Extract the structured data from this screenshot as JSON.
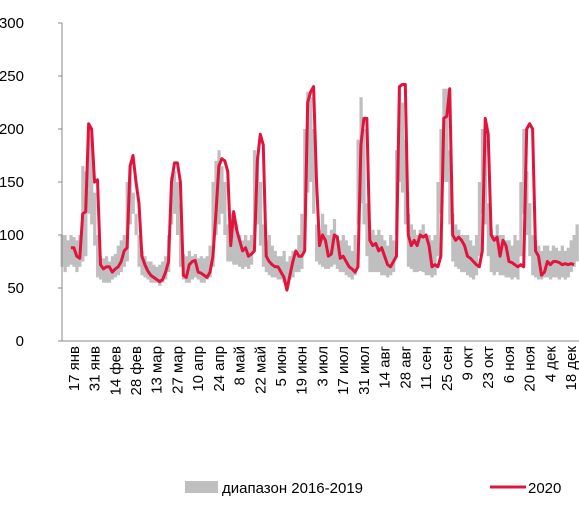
{
  "chart_data": {
    "type": "range-line",
    "categories": [
      null,
      null,
      null,
      null,
      "17 янв",
      null,
      null,
      null,
      null,
      null,
      null,
      "31 янв",
      null,
      null,
      null,
      null,
      null,
      null,
      "14 фев",
      null,
      null,
      null,
      null,
      null,
      null,
      "28 фев",
      null,
      null,
      null,
      null,
      null,
      null,
      "13 мар",
      null,
      null,
      null,
      null,
      null,
      null,
      "27 мар",
      null,
      null,
      null,
      null,
      null,
      null,
      "10 апр",
      null,
      null,
      null,
      null,
      null,
      null,
      "24 апр",
      null,
      null,
      null,
      null,
      null,
      null,
      "8 май",
      null,
      null,
      null,
      null,
      null,
      null,
      "22 май",
      null,
      null,
      null,
      null,
      null,
      null,
      "5 июн",
      null,
      null,
      null,
      null,
      null,
      null,
      "19 июн",
      null,
      null,
      null,
      null,
      null,
      null,
      "3 июл",
      null,
      null,
      null,
      null,
      null,
      null,
      "17 июл",
      null,
      null,
      null,
      null,
      null,
      null,
      "31 июл",
      null,
      null,
      null,
      null,
      null,
      null,
      "14 авг",
      null,
      null,
      null,
      null,
      null,
      null,
      "28 авг",
      null,
      null,
      null,
      null,
      null,
      null,
      "11 сен",
      null,
      null,
      null,
      null,
      null,
      null,
      "25 сен",
      null,
      null,
      null,
      null,
      null,
      null,
      "9 окт",
      null,
      null,
      null,
      null,
      null,
      null,
      "23 окт",
      null,
      null,
      null,
      null,
      null,
      null,
      "6 ноя",
      null,
      null,
      null,
      null,
      null,
      null,
      "20 ноя",
      null,
      null,
      null,
      null,
      null,
      null,
      "4 дек",
      null,
      null,
      null,
      null,
      null,
      null,
      "18 дек",
      null,
      null
    ],
    "series": [
      {
        "name": "диапазон 2016-2019",
        "color": "#bfbfbf",
        "values": [
          100,
          100,
          95,
          100,
          98,
          95,
          100,
          165,
          160,
          195,
          190,
          140,
          100,
          80,
          78,
          80,
          75,
          80,
          82,
          90,
          95,
          100,
          150,
          165,
          140,
          120,
          100,
          85,
          80,
          75,
          75,
          72,
          70,
          72,
          75,
          80,
          100,
          155,
          160,
          150,
          130,
          82,
          80,
          85,
          80,
          82,
          78,
          80,
          78,
          80,
          90,
          150,
          170,
          180,
          165,
          150,
          110,
          120,
          115,
          110,
          100,
          95,
          100,
          95,
          100,
          180,
          175,
          150,
          110,
          95,
          100,
          90,
          85,
          80,
          80,
          85,
          75,
          80,
          85,
          80,
          100,
          120,
          200,
          235,
          230,
          200,
          110,
          105,
          120,
          110,
          100,
          105,
          115,
          100,
          95,
          100,
          95,
          90,
          85,
          100,
          190,
          230,
          200,
          130,
          100,
          105,
          100,
          105,
          100,
          95,
          90,
          100,
          95,
          180,
          235,
          225,
          190,
          120,
          110,
          105,
          100,
          105,
          110,
          100,
          100,
          95,
          100,
          150,
          200,
          238,
          238,
          180,
          120,
          110,
          105,
          100,
          100,
          100,
          95,
          90,
          100,
          150,
          200,
          190,
          130,
          105,
          100,
          110,
          100,
          100,
          95,
          95,
          90,
          100,
          95,
          150,
          200,
          160,
          130,
          100,
          95,
          90,
          85,
          90,
          90,
          85,
          90,
          88,
          85,
          90,
          85,
          88,
          95,
          100,
          110
        ],
        "low": [
          70,
          65,
          70,
          72,
          70,
          65,
          70,
          75,
          80,
          120,
          110,
          90,
          60,
          58,
          55,
          55,
          55,
          58,
          60,
          62,
          65,
          70,
          75,
          110,
          120,
          100,
          70,
          62,
          60,
          58,
          55,
          55,
          55,
          52,
          55,
          58,
          65,
          110,
          120,
          100,
          70,
          58,
          55,
          55,
          58,
          60,
          58,
          55,
          55,
          58,
          60,
          70,
          100,
          110,
          120,
          100,
          75,
          75,
          72,
          72,
          70,
          68,
          70,
          68,
          72,
          100,
          110,
          90,
          70,
          65,
          62,
          60,
          60,
          58,
          58,
          55,
          55,
          58,
          60,
          65,
          65,
          68,
          100,
          140,
          150,
          120,
          75,
          72,
          70,
          68,
          68,
          70,
          72,
          68,
          65,
          65,
          62,
          60,
          58,
          62,
          110,
          130,
          110,
          80,
          65,
          65,
          65,
          65,
          62,
          62,
          60,
          62,
          65,
          100,
          150,
          140,
          110,
          70,
          68,
          65,
          65,
          66,
          65,
          62,
          62,
          60,
          62,
          80,
          120,
          150,
          150,
          110,
          75,
          70,
          68,
          65,
          65,
          62,
          60,
          58,
          62,
          80,
          120,
          110,
          80,
          65,
          62,
          65,
          62,
          62,
          60,
          60,
          58,
          60,
          58,
          80,
          120,
          100,
          80,
          62,
          60,
          58,
          58,
          60,
          60,
          58,
          60,
          60,
          58,
          60,
          58,
          60,
          65,
          70,
          75
        ]
      },
      {
        "name": "2020",
        "color": "#e0143c",
        "values": [
          null,
          null,
          null,
          88,
          88,
          80,
          78,
          120,
          122,
          205,
          200,
          150,
          152,
          72,
          68,
          70,
          70,
          65,
          68,
          70,
          75,
          85,
          88,
          165,
          175,
          150,
          130,
          80,
          72,
          66,
          62,
          60,
          58,
          56,
          58,
          65,
          75,
          150,
          168,
          168,
          150,
          62,
          60,
          72,
          75,
          76,
          65,
          64,
          62,
          60,
          65,
          80,
          120,
          165,
          172,
          170,
          160,
          90,
          122,
          105,
          95,
          85,
          88,
          80,
          82,
          85,
          170,
          195,
          185,
          80,
          75,
          72,
          70,
          70,
          65,
          60,
          48,
          62,
          75,
          85,
          80,
          80,
          85,
          225,
          235,
          240,
          150,
          90,
          100,
          95,
          80,
          82,
          100,
          98,
          78,
          80,
          75,
          70,
          68,
          65,
          70,
          185,
          210,
          210,
          95,
          90,
          92,
          85,
          88,
          80,
          72,
          70,
          75,
          80,
          240,
          242,
          242,
          100,
          90,
          95,
          90,
          100,
          98,
          100,
          90,
          70,
          72,
          70,
          80,
          210,
          212,
          238,
          100,
          95,
          98,
          95,
          90,
          80,
          78,
          75,
          72,
          70,
          85,
          210,
          195,
          100,
          95,
          98,
          80,
          95,
          90,
          75,
          74,
          72,
          70,
          72,
          70,
          200,
          205,
          200,
          85,
          80,
          62,
          65,
          75,
          72,
          75,
          75,
          74,
          72,
          73,
          72,
          73,
          72,
          null
        ]
      }
    ],
    "ylim": [
      0,
      300
    ],
    "yticks": [
      0,
      50,
      100,
      150,
      200,
      250,
      300
    ]
  }
}
